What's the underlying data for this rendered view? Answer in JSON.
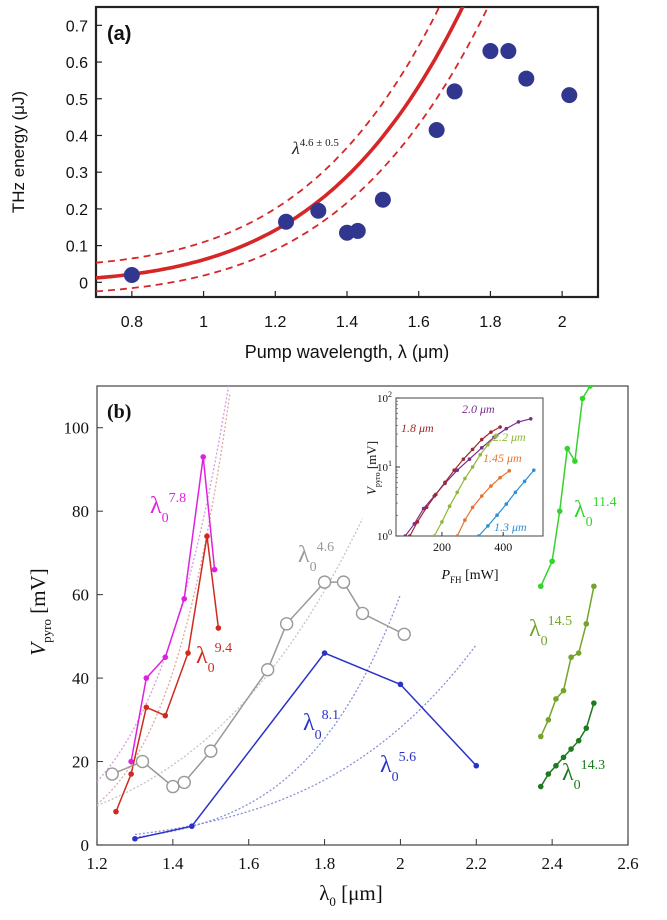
{
  "chart_data": [
    {
      "panel_label": "(a)",
      "type": "scatter",
      "xlabel": "Pump wavelength, λ (μm)",
      "ylabel": "THz energy (μJ)",
      "xlim": [
        0.7,
        2.1
      ],
      "ylim": [
        -0.04,
        0.75
      ],
      "xticks": [
        "0.8",
        "1",
        "1.2",
        "1.4",
        "1.6",
        "1.8",
        "2"
      ],
      "yticks": [
        "0",
        "0.1",
        "0.2",
        "0.3",
        "0.4",
        "0.5",
        "0.6",
        "0.7"
      ],
      "annotation": "λ4.6 ± 0.5",
      "fit_exponent": 4.6,
      "fit_band": 0.5,
      "colors": {
        "points": "#31378f",
        "fit": "#d62728"
      },
      "points": [
        {
          "x": 0.8,
          "y": 0.02
        },
        {
          "x": 1.23,
          "y": 0.165
        },
        {
          "x": 1.32,
          "y": 0.195
        },
        {
          "x": 1.4,
          "y": 0.135
        },
        {
          "x": 1.43,
          "y": 0.14
        },
        {
          "x": 1.5,
          "y": 0.225
        },
        {
          "x": 1.65,
          "y": 0.415
        },
        {
          "x": 1.7,
          "y": 0.52
        },
        {
          "x": 1.8,
          "y": 0.63
        },
        {
          "x": 1.85,
          "y": 0.63
        },
        {
          "x": 1.9,
          "y": 0.555
        },
        {
          "x": 2.02,
          "y": 0.51
        }
      ]
    },
    {
      "panel_label": "(b)",
      "type": "line",
      "xlabel": "λ0 [μm]",
      "ylabel": "Vpyro [mV]",
      "xlim": [
        1.2,
        2.6
      ],
      "ylim": [
        0,
        110
      ],
      "xticks": [
        "1.2",
        "1.4",
        "1.6",
        "1.8",
        "2",
        "2.2",
        "2.4",
        "2.6"
      ],
      "yticks": [
        "0",
        "20",
        "40",
        "60",
        "80",
        "100"
      ],
      "series": [
        {
          "name": "λ0 7.8",
          "color": "#e020e0",
          "marker": "dot",
          "x": [
            1.29,
            1.33,
            1.38,
            1.43,
            1.48,
            1.51
          ],
          "y": [
            20,
            40,
            45,
            59,
            93,
            66
          ]
        },
        {
          "name": "λ0 9.4",
          "color": "#d02a1e",
          "marker": "dot",
          "x": [
            1.25,
            1.29,
            1.33,
            1.38,
            1.44,
            1.49,
            1.52
          ],
          "y": [
            8,
            17,
            33,
            31,
            46,
            74,
            52
          ]
        },
        {
          "name": "λ0 4.6",
          "color": "#999999",
          "marker": "circle",
          "x": [
            1.24,
            1.32,
            1.4,
            1.43,
            1.5,
            1.65,
            1.7,
            1.8,
            1.85,
            1.9,
            2.01
          ],
          "y": [
            17,
            20,
            14,
            15,
            22.5,
            42,
            53,
            63,
            63,
            55.5,
            50.5
          ]
        },
        {
          "name": "λ0 8.1",
          "color": "#2b33c6",
          "marker": "dot",
          "x": [
            1.3,
            1.45,
            1.8,
            2.0,
            2.2
          ],
          "y": [
            1.5,
            4.5,
            46,
            38.5,
            19
          ]
        },
        {
          "name": "λ0 11.4",
          "color": "#35d42a",
          "marker": "dot",
          "x": [
            2.37,
            2.4,
            2.42,
            2.44,
            2.46,
            2.48,
            2.5
          ],
          "y": [
            62,
            68,
            80,
            95,
            92,
            107,
            110
          ]
        },
        {
          "name": "λ0 14.5",
          "color": "#74a42b",
          "marker": "dot",
          "x": [
            2.37,
            2.39,
            2.41,
            2.43,
            2.45,
            2.47,
            2.49,
            2.51
          ],
          "y": [
            26,
            30,
            35,
            37,
            45,
            46,
            53,
            62
          ]
        },
        {
          "name": "λ0 14.3",
          "color": "#1d7a1e",
          "marker": "dot",
          "x": [
            2.37,
            2.39,
            2.41,
            2.43,
            2.45,
            2.47,
            2.49,
            2.51
          ],
          "y": [
            14,
            17,
            19,
            21,
            23,
            25,
            28,
            34
          ]
        }
      ],
      "fit_curves": [
        {
          "exponent": 7.8,
          "color": "#d89ae0",
          "x0": 1.2,
          "x1": 1.6,
          "ref_x": 1.48,
          "ref_y": 78
        },
        {
          "exponent": 9.4,
          "color": "#e0a8a0",
          "x0": 1.2,
          "x1": 1.55,
          "ref_x": 1.48,
          "ref_y": 70
        },
        {
          "exponent": 4.6,
          "color": "#c4c4c4",
          "x0": 1.2,
          "x1": 1.9,
          "ref_x": 1.8,
          "ref_y": 61
        },
        {
          "exponent": 8.1,
          "color": "#8c90d8",
          "x0": 1.3,
          "x1": 2.0,
          "ref_x": 2.0,
          "ref_y": 60
        },
        {
          "exponent": 5.6,
          "color": "#8c90d8",
          "x0": 1.3,
          "x1": 2.2,
          "ref_x": 2.2,
          "ref_y": 48
        }
      ],
      "labels": [
        {
          "base": "λ0",
          "exp": "7.8",
          "color": "#e020e0"
        },
        {
          "base": "λ0",
          "exp": "9.4",
          "color": "#d02a1e"
        },
        {
          "base": "λ0",
          "exp": "4.6",
          "color": "#999999"
        },
        {
          "base": "λ0",
          "exp": "8.1",
          "color": "#2b33c6"
        },
        {
          "base": "λ0",
          "exp": "5.6",
          "color": "#2b33c6"
        },
        {
          "base": "λ0",
          "exp": "11.4",
          "color": "#35d42a"
        },
        {
          "base": "λ0",
          "exp": "14.5",
          "color": "#74a42b"
        },
        {
          "base": "λ0",
          "exp": "14.3",
          "color": "#1d7a1e"
        }
      ],
      "inset": {
        "type": "line",
        "xlabel": "PFH [mW]",
        "ylabel": "Vpyro [mV]",
        "xscale": "linear",
        "yscale": "log",
        "xlim": [
          50,
          530
        ],
        "ylim": [
          1,
          100
        ],
        "xticks": [
          "200",
          "400"
        ],
        "yticks": [
          "10^0",
          "10^1",
          "10^2"
        ],
        "series": [
          {
            "name": "2.0 μm",
            "color": "#7b2d8e",
            "x": [
              80,
              110,
              140,
              175,
              210,
              250,
              290,
              330,
              370,
              410,
              450,
              490
            ],
            "y": [
              1.0,
              1.5,
              2.5,
              3.8,
              5.8,
              9.0,
              13,
              19,
              27,
              36,
              45,
              50
            ]
          },
          {
            "name": "1.8 μm",
            "color": "#a0282e",
            "x": [
              95,
              120,
              150,
              180,
              210,
              240,
              270,
              300,
              330,
              360,
              390
            ],
            "y": [
              1.0,
              1.6,
              2.6,
              4.0,
              6.0,
              9.0,
              13,
              18,
              25,
              32,
              38
            ]
          },
          {
            "name": "2.2 μm",
            "color": "#8fb838",
            "x": [
              175,
              200,
              225,
              250,
              275,
              300,
              325,
              350,
              375
            ],
            "y": [
              1.0,
              1.6,
              2.7,
              4.3,
              6.8,
              10,
              15,
              21,
              28
            ]
          },
          {
            "name": "1.45 μm",
            "color": "#e57330",
            "x": [
              250,
              275,
              300,
              330,
              360,
              390,
              420
            ],
            "y": [
              1.0,
              1.7,
              2.6,
              3.8,
              5.3,
              7.0,
              8.8
            ]
          },
          {
            "name": "1.3 μm",
            "color": "#2f8fd8",
            "x": [
              320,
              350,
              380,
              410,
              440,
              470,
              500
            ],
            "y": [
              1.0,
              1.4,
              2.0,
              2.9,
              4.3,
              6.2,
              9.0
            ]
          }
        ]
      }
    }
  ]
}
